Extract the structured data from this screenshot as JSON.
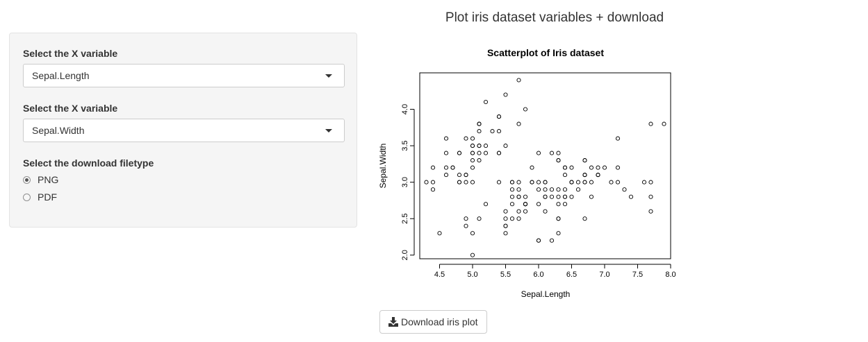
{
  "page": {
    "title": "Plot iris dataset variables + download"
  },
  "sidebar": {
    "x_select": {
      "label": "Select the X variable",
      "value": "Sepal.Length"
    },
    "y_select": {
      "label": "Select the X variable",
      "value": "Sepal.Width"
    },
    "filetype": {
      "label": "Select the download filetype",
      "options": [
        {
          "label": "PNG",
          "checked": true
        },
        {
          "label": "PDF",
          "checked": false
        }
      ]
    }
  },
  "download": {
    "label": "Download iris plot",
    "icon": "download-icon"
  },
  "chart_data": {
    "type": "scatter",
    "title": "Scatterplot of Iris dataset",
    "xlabel": "Sepal.Length",
    "ylabel": "Sepal.Width",
    "xlim": [
      4.2,
      8.0
    ],
    "ylim": [
      1.95,
      4.5
    ],
    "xticks": [
      "4.5",
      "5.0",
      "5.5",
      "6.0",
      "6.5",
      "7.0",
      "7.5",
      "8.0"
    ],
    "yticks": [
      "2.0",
      "2.5",
      "3.0",
      "3.5",
      "4.0"
    ],
    "marker": "open-circle",
    "grid": false,
    "points": [
      [
        5.1,
        3.5
      ],
      [
        4.9,
        3.0
      ],
      [
        4.7,
        3.2
      ],
      [
        4.6,
        3.1
      ],
      [
        5.0,
        3.6
      ],
      [
        5.4,
        3.9
      ],
      [
        4.6,
        3.4
      ],
      [
        5.0,
        3.4
      ],
      [
        4.4,
        2.9
      ],
      [
        4.9,
        3.1
      ],
      [
        5.4,
        3.7
      ],
      [
        4.8,
        3.4
      ],
      [
        4.8,
        3.0
      ],
      [
        4.3,
        3.0
      ],
      [
        5.8,
        4.0
      ],
      [
        5.7,
        4.4
      ],
      [
        5.4,
        3.9
      ],
      [
        5.1,
        3.5
      ],
      [
        5.7,
        3.8
      ],
      [
        5.1,
        3.8
      ],
      [
        5.4,
        3.4
      ],
      [
        5.1,
        3.7
      ],
      [
        4.6,
        3.6
      ],
      [
        5.1,
        3.3
      ],
      [
        4.8,
        3.4
      ],
      [
        5.0,
        3.0
      ],
      [
        5.0,
        3.4
      ],
      [
        5.2,
        3.5
      ],
      [
        5.2,
        3.4
      ],
      [
        4.7,
        3.2
      ],
      [
        4.8,
        3.1
      ],
      [
        5.4,
        3.4
      ],
      [
        5.2,
        4.1
      ],
      [
        5.5,
        4.2
      ],
      [
        4.9,
        3.1
      ],
      [
        5.0,
        3.2
      ],
      [
        5.5,
        3.5
      ],
      [
        4.9,
        3.6
      ],
      [
        4.4,
        3.0
      ],
      [
        5.1,
        3.4
      ],
      [
        5.0,
        3.5
      ],
      [
        4.5,
        2.3
      ],
      [
        4.4,
        3.2
      ],
      [
        5.0,
        3.5
      ],
      [
        5.1,
        3.8
      ],
      [
        4.8,
        3.0
      ],
      [
        5.1,
        3.8
      ],
      [
        4.6,
        3.2
      ],
      [
        5.3,
        3.7
      ],
      [
        5.0,
        3.3
      ],
      [
        7.0,
        3.2
      ],
      [
        6.4,
        3.2
      ],
      [
        6.9,
        3.1
      ],
      [
        5.5,
        2.3
      ],
      [
        6.5,
        2.8
      ],
      [
        5.7,
        2.8
      ],
      [
        6.3,
        3.3
      ],
      [
        4.9,
        2.4
      ],
      [
        6.6,
        2.9
      ],
      [
        5.2,
        2.7
      ],
      [
        5.0,
        2.0
      ],
      [
        5.9,
        3.0
      ],
      [
        6.0,
        2.2
      ],
      [
        6.1,
        2.9
      ],
      [
        5.6,
        2.9
      ],
      [
        6.7,
        3.1
      ],
      [
        5.6,
        3.0
      ],
      [
        5.8,
        2.7
      ],
      [
        6.2,
        2.2
      ],
      [
        5.6,
        2.5
      ],
      [
        5.9,
        3.2
      ],
      [
        6.1,
        2.8
      ],
      [
        6.3,
        2.5
      ],
      [
        6.1,
        2.8
      ],
      [
        6.4,
        2.9
      ],
      [
        6.6,
        3.0
      ],
      [
        6.8,
        2.8
      ],
      [
        6.7,
        3.0
      ],
      [
        6.0,
        2.9
      ],
      [
        5.7,
        2.6
      ],
      [
        5.5,
        2.4
      ],
      [
        5.5,
        2.4
      ],
      [
        5.8,
        2.7
      ],
      [
        6.0,
        2.7
      ],
      [
        5.4,
        3.0
      ],
      [
        6.0,
        3.4
      ],
      [
        6.7,
        3.1
      ],
      [
        6.3,
        2.3
      ],
      [
        5.6,
        3.0
      ],
      [
        5.5,
        2.5
      ],
      [
        5.5,
        2.6
      ],
      [
        6.1,
        3.0
      ],
      [
        5.8,
        2.6
      ],
      [
        5.0,
        2.3
      ],
      [
        5.6,
        2.7
      ],
      [
        5.7,
        3.0
      ],
      [
        5.7,
        2.9
      ],
      [
        6.2,
        2.9
      ],
      [
        5.1,
        2.5
      ],
      [
        5.7,
        2.8
      ],
      [
        6.3,
        3.3
      ],
      [
        5.8,
        2.7
      ],
      [
        7.1,
        3.0
      ],
      [
        6.3,
        2.9
      ],
      [
        6.5,
        3.0
      ],
      [
        7.6,
        3.0
      ],
      [
        4.9,
        2.5
      ],
      [
        7.3,
        2.9
      ],
      [
        6.7,
        2.5
      ],
      [
        7.2,
        3.6
      ],
      [
        6.5,
        3.2
      ],
      [
        6.4,
        2.7
      ],
      [
        6.8,
        3.0
      ],
      [
        5.7,
        2.5
      ],
      [
        5.8,
        2.8
      ],
      [
        6.4,
        3.2
      ],
      [
        6.5,
        3.0
      ],
      [
        7.7,
        3.8
      ],
      [
        7.7,
        2.6
      ],
      [
        6.0,
        2.2
      ],
      [
        6.9,
        3.2
      ],
      [
        5.6,
        2.8
      ],
      [
        7.7,
        2.8
      ],
      [
        6.3,
        2.7
      ],
      [
        6.7,
        3.3
      ],
      [
        7.2,
        3.2
      ],
      [
        6.2,
        2.8
      ],
      [
        6.1,
        3.0
      ],
      [
        6.4,
        2.8
      ],
      [
        7.2,
        3.0
      ],
      [
        7.4,
        2.8
      ],
      [
        7.9,
        3.8
      ],
      [
        6.4,
        2.8
      ],
      [
        6.3,
        2.8
      ],
      [
        6.1,
        2.6
      ],
      [
        7.7,
        3.0
      ],
      [
        6.3,
        3.4
      ],
      [
        6.4,
        3.1
      ],
      [
        6.0,
        3.0
      ],
      [
        6.9,
        3.1
      ],
      [
        6.7,
        3.1
      ],
      [
        6.9,
        3.1
      ],
      [
        5.8,
        2.7
      ],
      [
        6.8,
        3.2
      ],
      [
        6.7,
        3.3
      ],
      [
        6.7,
        3.0
      ],
      [
        6.3,
        2.5
      ],
      [
        6.5,
        3.0
      ],
      [
        6.2,
        3.4
      ],
      [
        5.9,
        3.0
      ]
    ]
  }
}
